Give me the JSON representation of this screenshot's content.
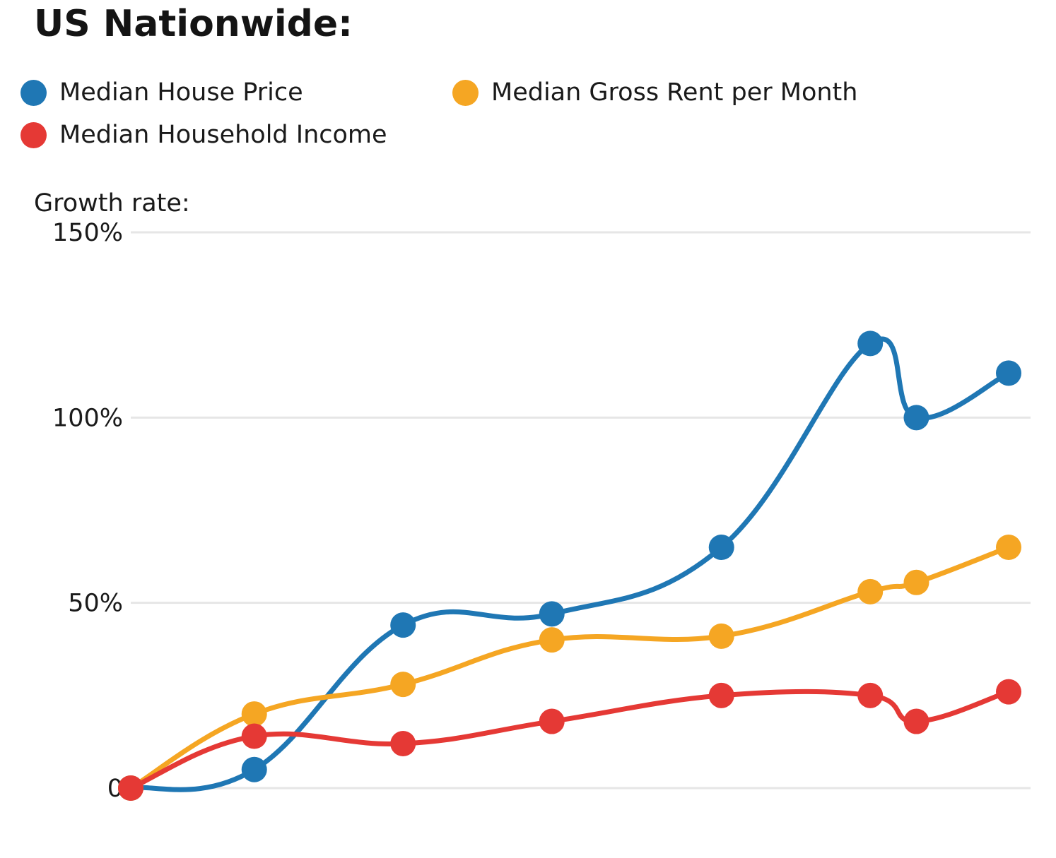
{
  "chart_data": {
    "type": "line",
    "title": "US Nationwide:",
    "ylabel": "Growth rate:",
    "xlabel": "",
    "y_ticks": [
      "0",
      "50%",
      "100%",
      "150%"
    ],
    "y_tick_values": [
      0,
      50,
      100,
      150
    ],
    "ylim": [
      0,
      150
    ],
    "grid": true,
    "legend_position": "top-left",
    "x": [
      0,
      1,
      2,
      3,
      4,
      5,
      6,
      7
    ],
    "x_positions": [
      0,
      0.83,
      1.83,
      2.83,
      3.97,
      4.97,
      5.28,
      5.9
    ],
    "series": [
      {
        "name": "Median House Price",
        "color": "#1f77b4",
        "values": [
          0,
          5,
          44,
          47,
          65,
          120,
          100,
          112
        ]
      },
      {
        "name": "Median Gross Rent per Month",
        "color": "#f5a623",
        "values": [
          0,
          20,
          28,
          40,
          41,
          53,
          55.5,
          65
        ]
      },
      {
        "name": "Median Household Income",
        "color": "#e53935",
        "values": [
          0,
          14,
          12,
          18,
          25,
          25,
          18,
          26
        ]
      }
    ]
  }
}
